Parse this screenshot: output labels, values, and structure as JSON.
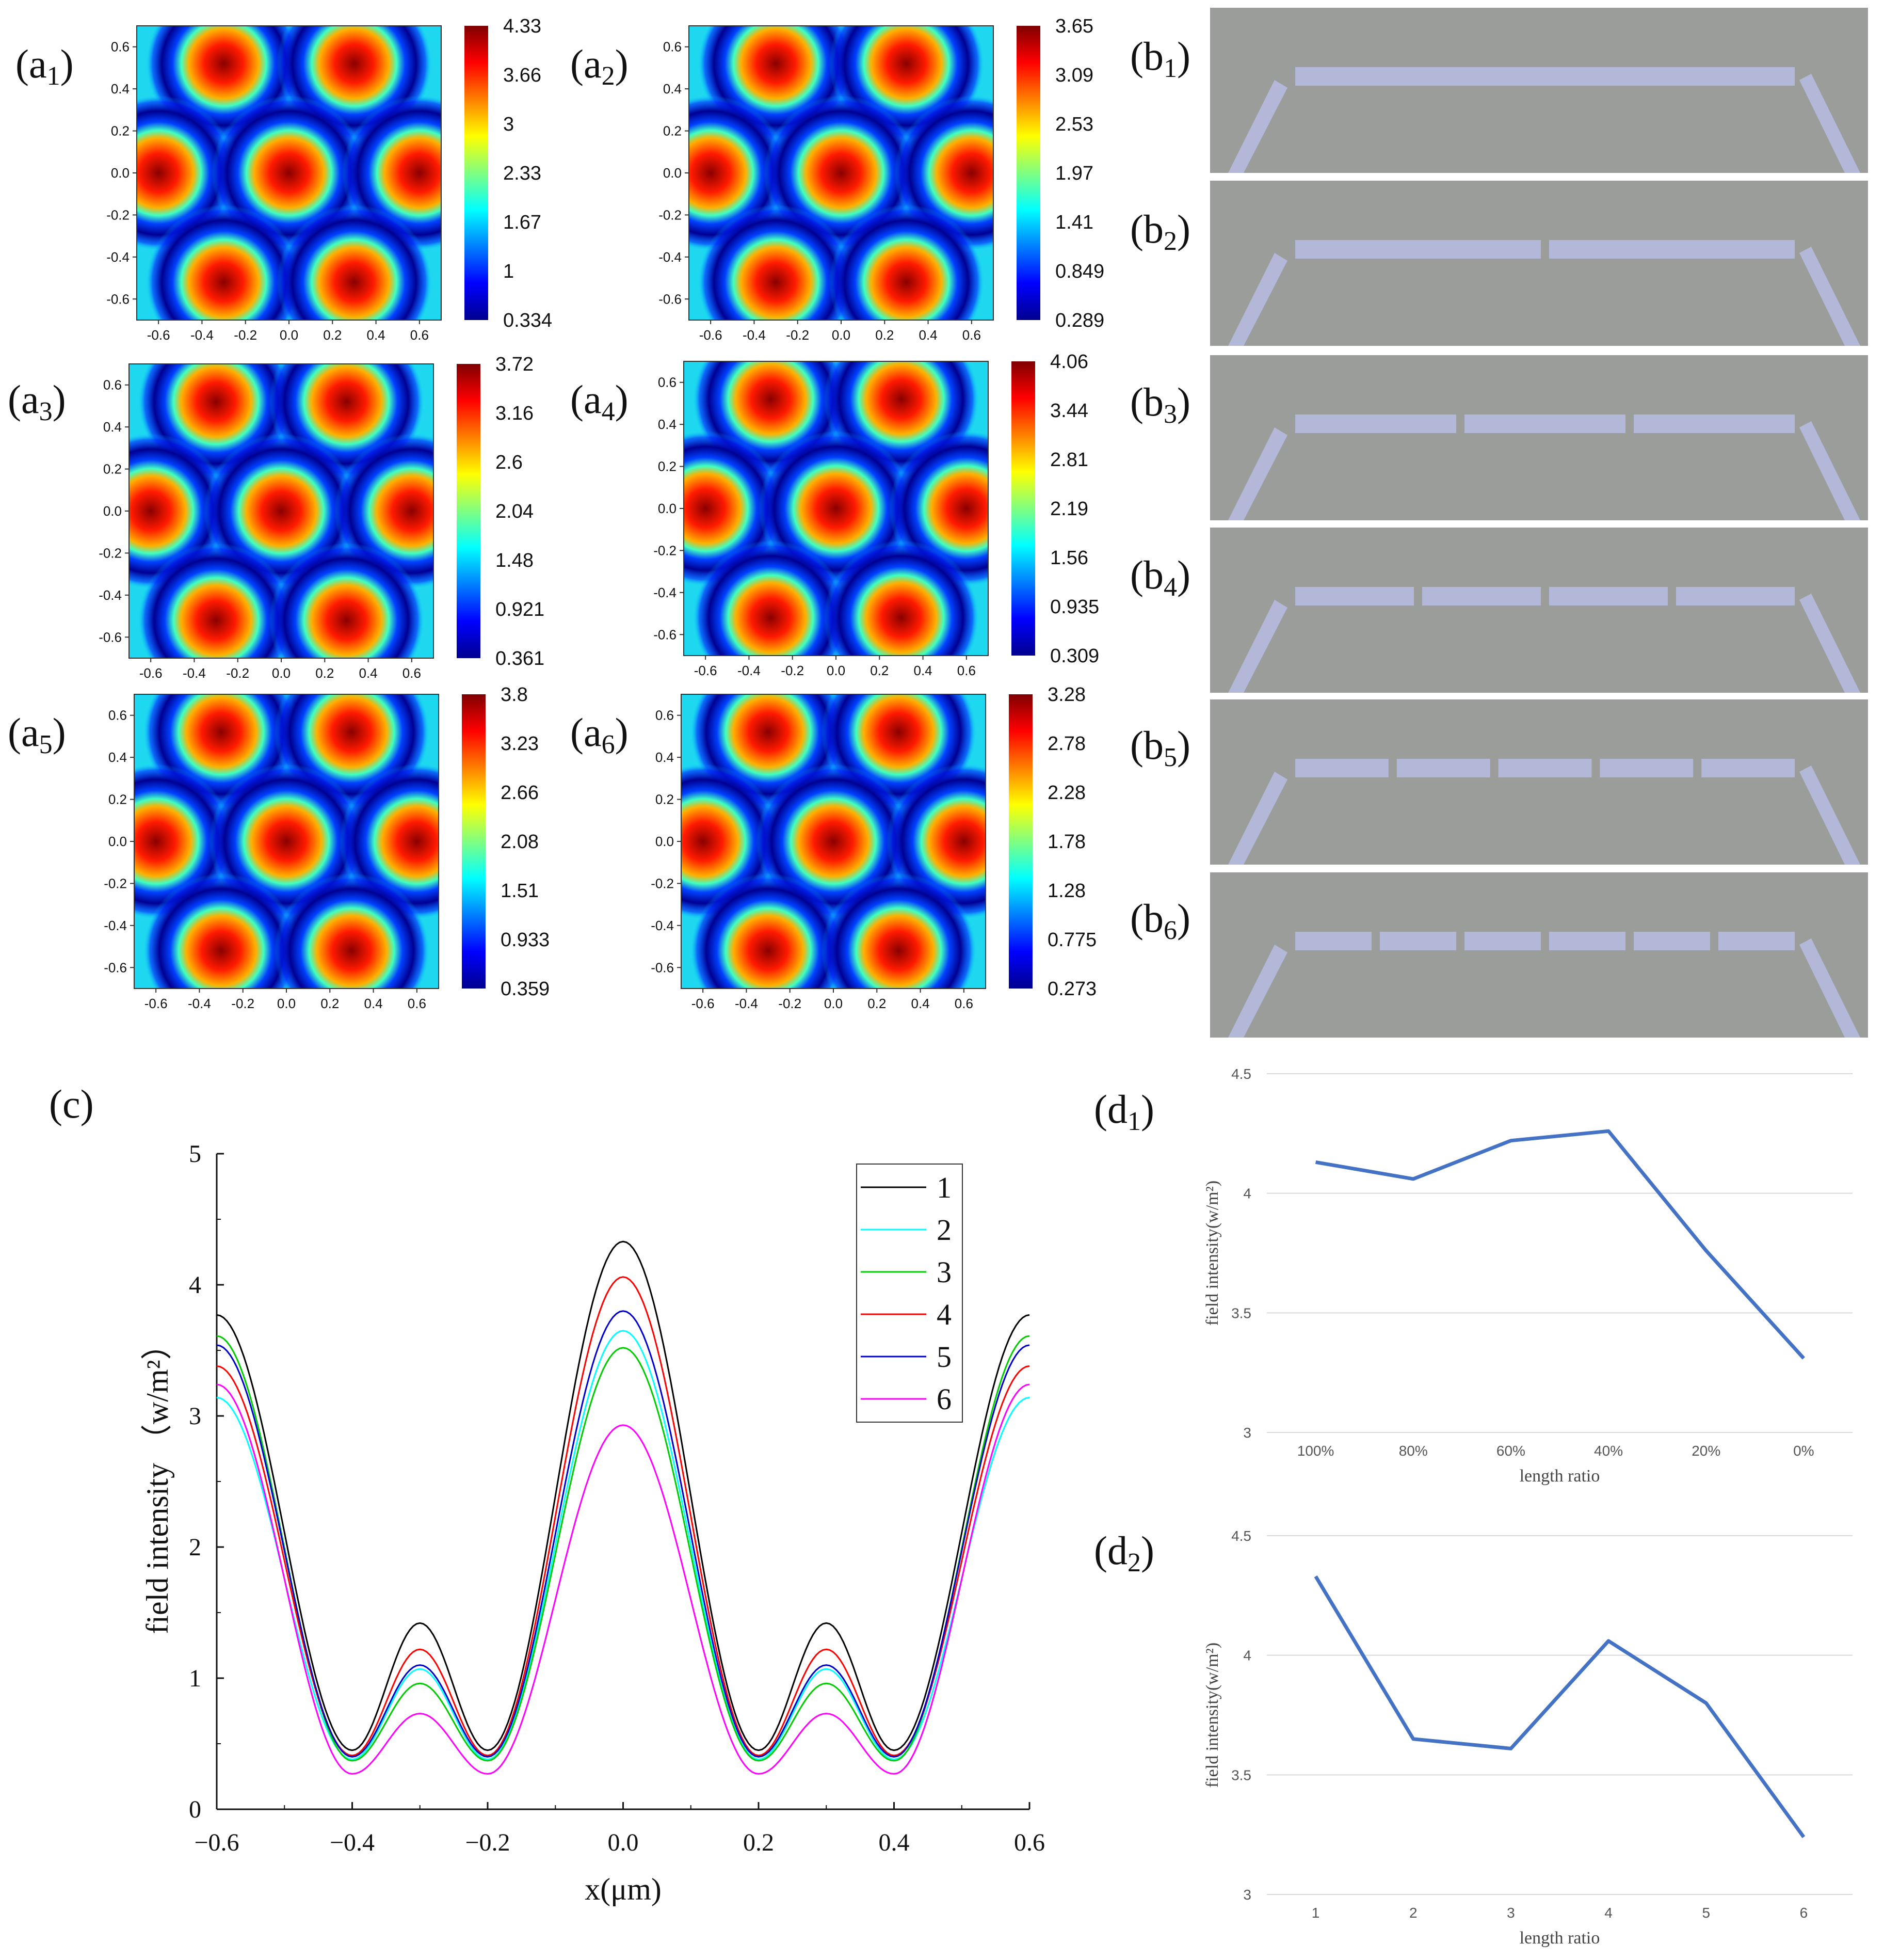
{
  "panel_labels": {
    "a1": {
      "main": "(a",
      "sub": "1",
      "close": ")"
    },
    "a2": {
      "main": "(a",
      "sub": "2",
      "close": ")"
    },
    "a3": {
      "main": "(a",
      "sub": "3",
      "close": ")"
    },
    "a4": {
      "main": "(a",
      "sub": "4",
      "close": ")"
    },
    "a5": {
      "main": "(a",
      "sub": "5",
      "close": ")"
    },
    "a6": {
      "main": "(a",
      "sub": "6",
      "close": ")"
    },
    "b1": {
      "main": "(b",
      "sub": "1",
      "close": ")"
    },
    "b2": {
      "main": "(b",
      "sub": "2",
      "close": ")"
    },
    "b3": {
      "main": "(b",
      "sub": "3",
      "close": ")"
    },
    "b4": {
      "main": "(b",
      "sub": "4",
      "close": ")"
    },
    "b5": {
      "main": "(b",
      "sub": "5",
      "close": ")"
    },
    "b6": {
      "main": "(b",
      "sub": "6",
      "close": ")"
    },
    "c": {
      "main": "(c",
      "sub": "",
      "close": ")"
    },
    "d1": {
      "main": "(d",
      "sub": "1",
      "close": ")"
    },
    "d2": {
      "main": "(d",
      "sub": "2",
      "close": ")"
    }
  },
  "colors": {
    "b_background": "#9a9d9a",
    "b_bar": "#b4b8d8",
    "d_line": "#4472c4",
    "series": [
      "#000000",
      "#00ffff",
      "#00cc00",
      "#ff0000",
      "#0000cc",
      "#ff00ff"
    ]
  },
  "chart_data": [
    {
      "id": "heatmaps",
      "type": "heatmap",
      "axis_ticks": [
        "-0.6",
        "-0.4",
        "-0.2",
        "0.0",
        "0.2",
        "0.4",
        "0.6"
      ],
      "colormap": "jet",
      "maps": [
        {
          "label": "a1",
          "colorbar": [
            "4.33",
            "3.66",
            "3",
            "2.33",
            "1.67",
            "1",
            "0.334"
          ],
          "min": 0.334,
          "max": 4.33
        },
        {
          "label": "a2",
          "colorbar": [
            "3.65",
            "3.09",
            "2.53",
            "1.97",
            "1.41",
            "0.849",
            "0.289"
          ],
          "min": 0.289,
          "max": 3.65
        },
        {
          "label": "a3",
          "colorbar": [
            "3.72",
            "3.16",
            "2.6",
            "2.04",
            "1.48",
            "0.921",
            "0.361"
          ],
          "min": 0.361,
          "max": 3.72
        },
        {
          "label": "a4",
          "colorbar": [
            "4.06",
            "3.44",
            "2.81",
            "2.19",
            "1.56",
            "0.935",
            "0.309"
          ],
          "min": 0.309,
          "max": 4.06
        },
        {
          "label": "a5",
          "colorbar": [
            "3.8",
            "3.23",
            "2.66",
            "2.08",
            "1.51",
            "0.933",
            "0.359"
          ],
          "min": 0.359,
          "max": 3.8
        },
        {
          "label": "a6",
          "colorbar": [
            "3.28",
            "2.78",
            "2.28",
            "1.78",
            "1.28",
            "0.775",
            "0.273"
          ],
          "min": 0.273,
          "max": 3.28
        }
      ]
    },
    {
      "id": "structures",
      "type": "diagram",
      "segments": [
        1,
        2,
        3,
        4,
        5,
        6
      ]
    },
    {
      "id": "c",
      "type": "line",
      "xlabel": "x(μm)",
      "ylabel": "field intensity （w/m²）",
      "xlim": [
        -0.6,
        0.6
      ],
      "ylim": [
        0,
        5
      ],
      "xticks": [
        "−0.6",
        "−0.4",
        "−0.2",
        "0.0",
        "0.2",
        "0.4",
        "0.6"
      ],
      "yticks": [
        "0",
        "1",
        "2",
        "3",
        "4",
        "5"
      ],
      "series": [
        {
          "name": "1",
          "peak0": 4.33,
          "peak6": 3.77,
          "mid": 1.42,
          "min": 0.45
        },
        {
          "name": "2",
          "peak0": 3.65,
          "peak6": 3.14,
          "mid": 1.07,
          "min": 0.38
        },
        {
          "name": "3",
          "peak0": 3.52,
          "peak6": 3.61,
          "mid": 0.96,
          "min": 0.37
        },
        {
          "name": "4",
          "peak0": 4.06,
          "peak6": 3.38,
          "mid": 1.22,
          "min": 0.41
        },
        {
          "name": "5",
          "peak0": 3.8,
          "peak6": 3.54,
          "mid": 1.1,
          "min": 0.4
        },
        {
          "name": "6",
          "peak0": 2.93,
          "peak6": 3.24,
          "mid": 0.73,
          "min": 0.27
        }
      ]
    },
    {
      "id": "d1",
      "type": "line",
      "xlabel": "length ratio",
      "ylabel": "field intensity(w/m²)",
      "categories": [
        "100%",
        "80%",
        "60%",
        "40%",
        "20%",
        "0%"
      ],
      "values": [
        4.13,
        4.06,
        4.22,
        4.26,
        3.76,
        3.31
      ],
      "ylim": [
        3,
        4.5
      ],
      "yticks": [
        "3",
        "3.5",
        "4",
        "4.5"
      ]
    },
    {
      "id": "d2",
      "type": "line",
      "xlabel": "length ratio",
      "ylabel": "field intensity(w/m²)",
      "categories": [
        "1",
        "2",
        "3",
        "4",
        "5",
        "6"
      ],
      "values": [
        4.33,
        3.65,
        3.61,
        4.06,
        3.8,
        3.24
      ],
      "ylim": [
        3,
        4.5
      ],
      "yticks": [
        "3",
        "3.5",
        "4",
        "4.5"
      ]
    }
  ]
}
